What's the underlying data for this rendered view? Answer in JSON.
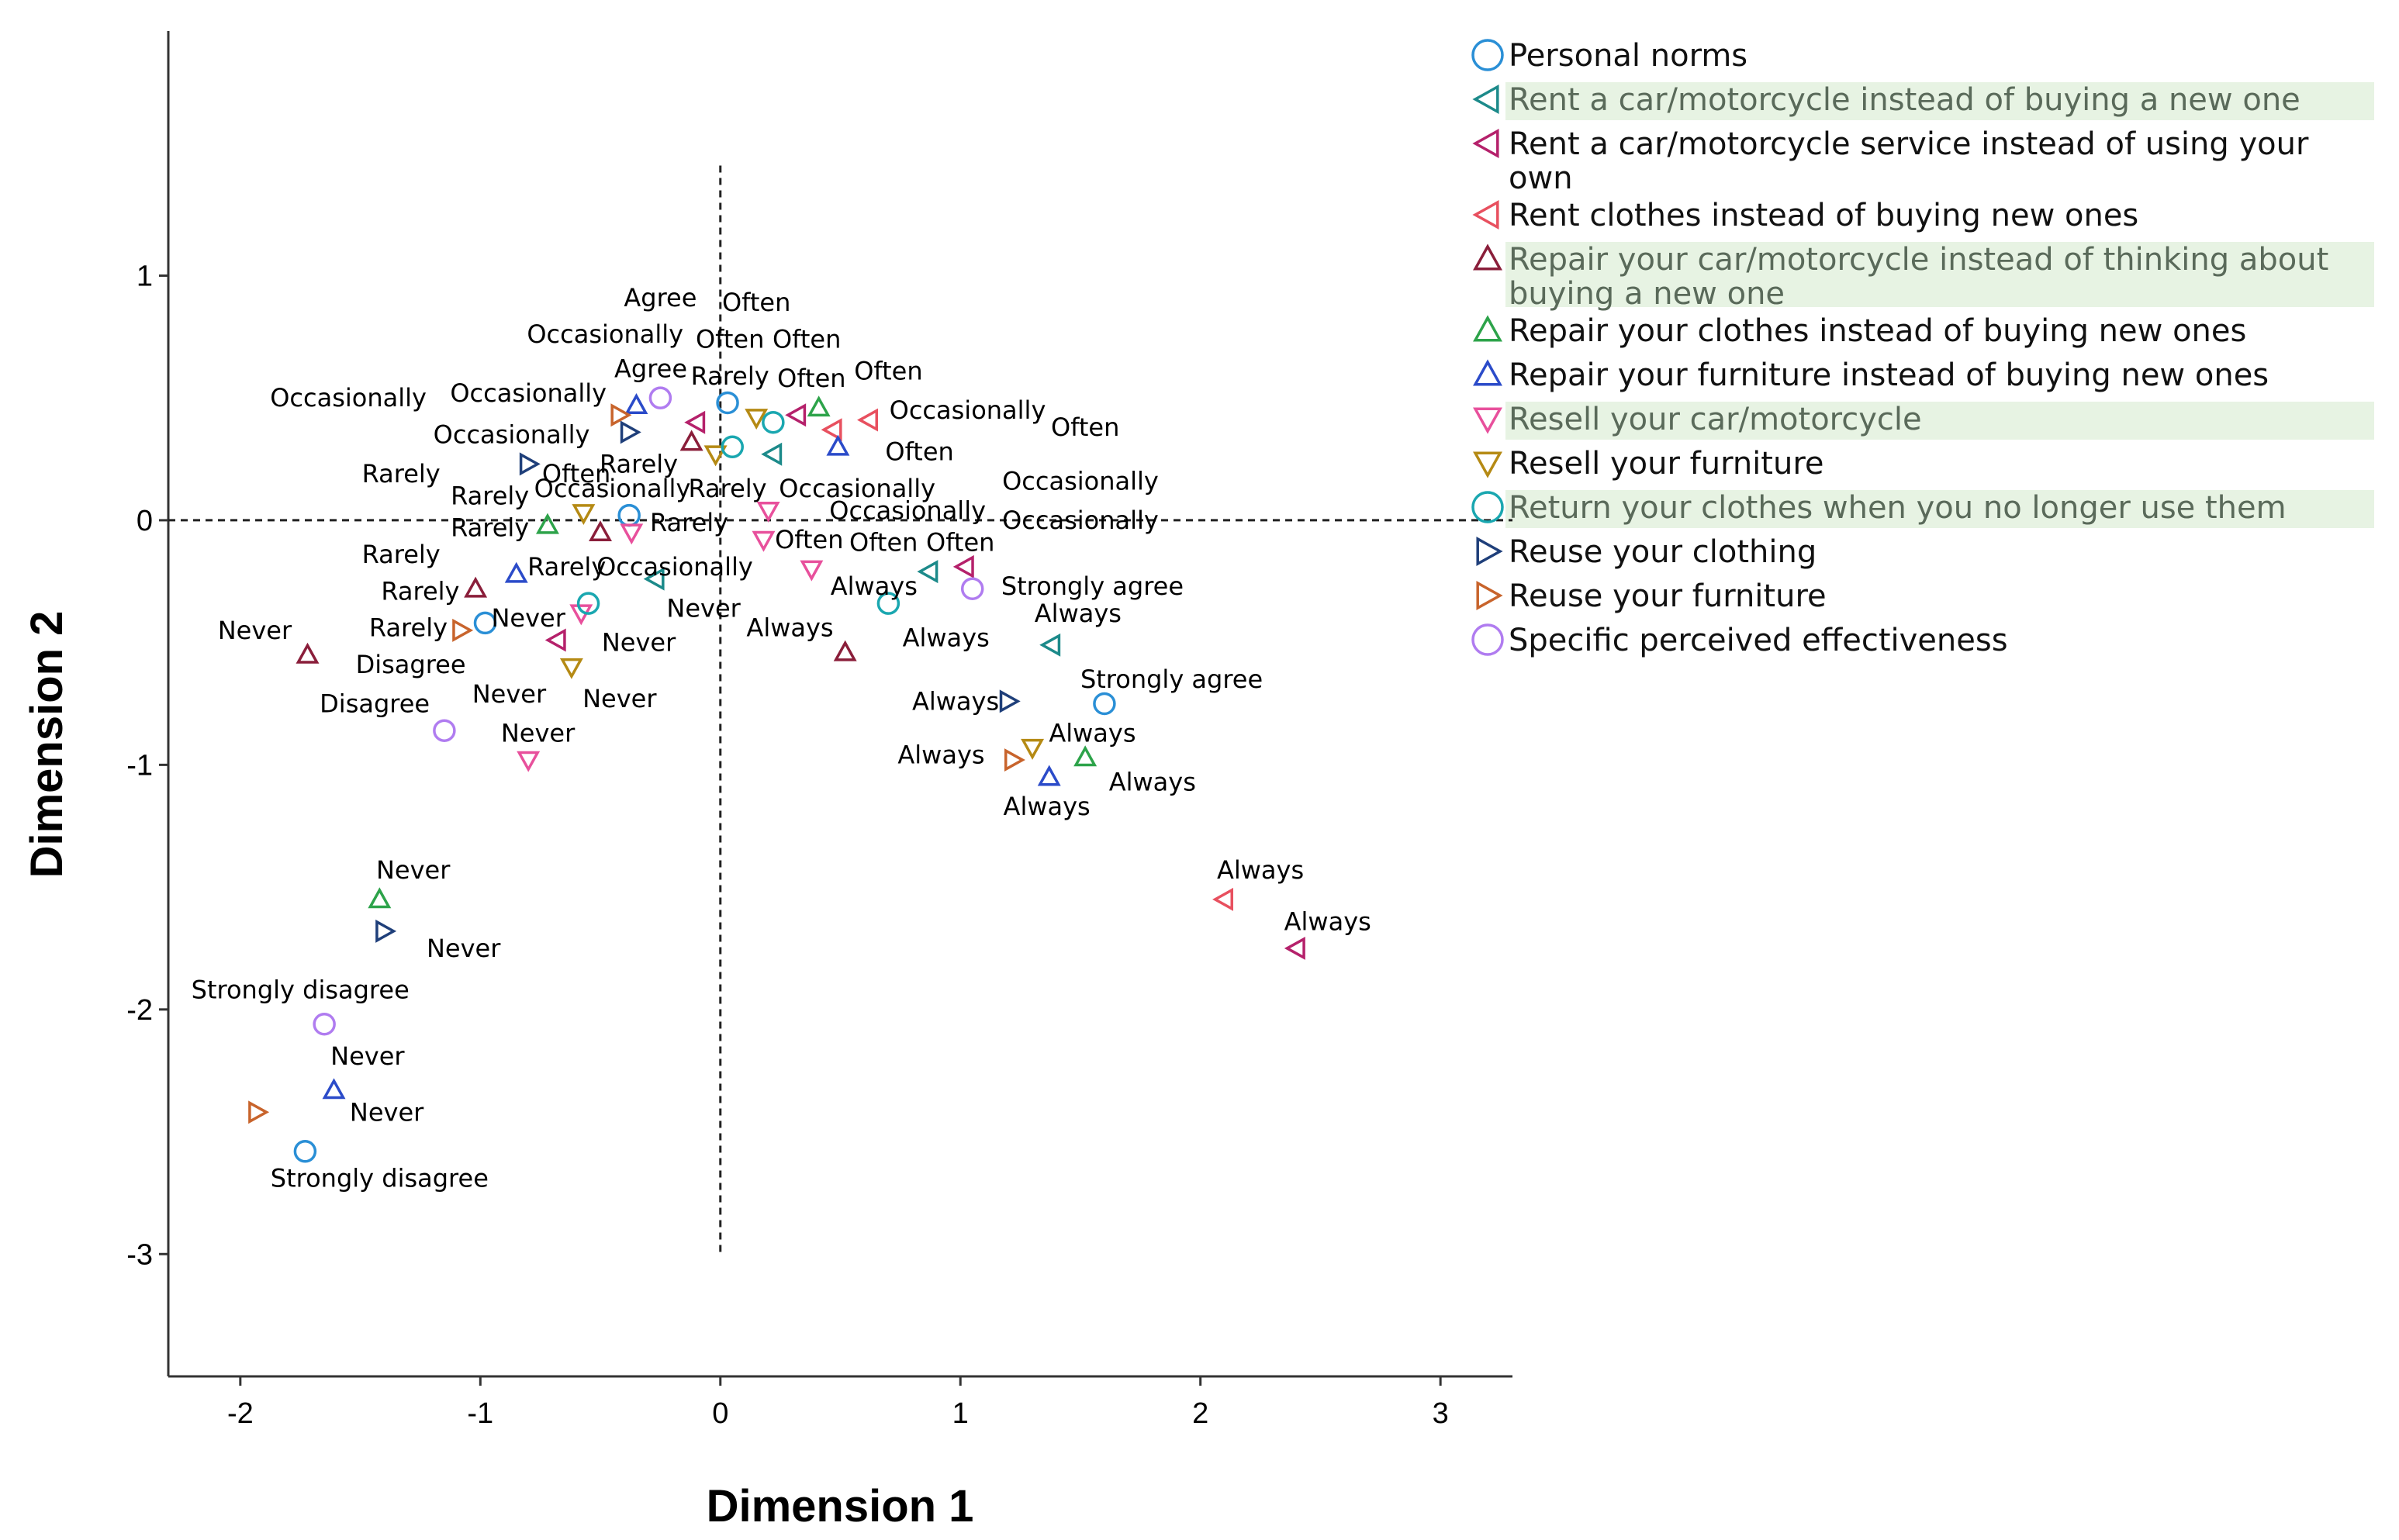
{
  "chart_data": {
    "type": "scatter",
    "title": "",
    "xlabel": "Dimension 1",
    "ylabel": "Dimension 2",
    "xlim": [
      -2.3,
      3.3
    ],
    "ylim": [
      -3.5,
      2.0
    ],
    "xticks": [
      -2,
      -1,
      0,
      1,
      2,
      3
    ],
    "yticks": [
      -3,
      -2,
      -1,
      0,
      1
    ],
    "grid": false,
    "reference_lines": {
      "x": 0,
      "y": 0,
      "style": "dashed"
    },
    "legend_position": "right",
    "series": [
      {
        "name": "Personal norms",
        "marker": "circle",
        "color": "#2a8fd6",
        "legend_highlight": false,
        "points": [
          {
            "x": 0.03,
            "y": 0.48,
            "label": "Agree"
          },
          {
            "x": -0.38,
            "y": 0.02,
            "label": "Occasionally"
          },
          {
            "x": 1.6,
            "y": -0.75,
            "label": "Strongly agree"
          },
          {
            "x": -0.98,
            "y": -0.42,
            "label": "Disagree"
          },
          {
            "x": -1.73,
            "y": -2.58,
            "label": "Strongly disagree"
          }
        ]
      },
      {
        "name": "Rent a car/motorcycle instead of buying a new one",
        "marker": "triangle-left",
        "color": "#1c8a8a",
        "legend_highlight": true,
        "points": [
          {
            "x": 0.22,
            "y": 0.27,
            "label": "Often"
          },
          {
            "x": -0.27,
            "y": -0.24,
            "label": "Rarely"
          },
          {
            "x": 0.87,
            "y": -0.21,
            "label": "Always"
          },
          {
            "x": 1.38,
            "y": -0.51,
            "label": "Always"
          }
        ]
      },
      {
        "name": "Rent a car/motorcycle service instead of using your own",
        "marker": "triangle-left",
        "color": "#b5216b",
        "legend_highlight": false,
        "points": [
          {
            "x": -0.1,
            "y": 0.4,
            "label": "Rarely"
          },
          {
            "x": 0.32,
            "y": 0.43,
            "label": "Often"
          },
          {
            "x": 1.02,
            "y": -0.19,
            "label": "Occasionally"
          },
          {
            "x": -0.68,
            "y": -0.49,
            "label": "Never"
          },
          {
            "x": 2.4,
            "y": -1.75,
            "label": "Always"
          }
        ]
      },
      {
        "name": "Rent clothes instead of buying new ones",
        "marker": "triangle-left",
        "color": "#e8505f",
        "legend_highlight": false,
        "points": [
          {
            "x": 0.47,
            "y": 0.37,
            "label": "Often"
          },
          {
            "x": 0.62,
            "y": 0.41,
            "label": "Occasionally"
          },
          {
            "x": 2.1,
            "y": -1.55,
            "label": "Always"
          }
        ]
      },
      {
        "name": "Repair your car/motorcycle instead of thinking about buying a new one",
        "marker": "triangle-up",
        "color": "#8a1e3a",
        "legend_highlight": true,
        "points": [
          {
            "x": -0.12,
            "y": 0.32,
            "label": "Occasionally"
          },
          {
            "x": -0.5,
            "y": -0.05,
            "label": "Occasionally"
          },
          {
            "x": -1.02,
            "y": -0.28,
            "label": "Rarely"
          },
          {
            "x": -1.72,
            "y": -0.55,
            "label": "Never"
          },
          {
            "x": 0.52,
            "y": -0.54,
            "label": "Always"
          }
        ]
      },
      {
        "name": "Repair your clothes instead of buying new ones",
        "marker": "triangle-up",
        "color": "#2da34a",
        "legend_highlight": false,
        "points": [
          {
            "x": 0.41,
            "y": 0.46,
            "label": "Often"
          },
          {
            "x": -0.72,
            "y": -0.02,
            "label": "Rarely"
          },
          {
            "x": 1.52,
            "y": -0.97,
            "label": "Always"
          },
          {
            "x": -1.42,
            "y": -1.55,
            "label": "Never"
          }
        ]
      },
      {
        "name": "Repair your furniture instead of buying new ones",
        "marker": "triangle-up",
        "color": "#2b4bc9",
        "legend_highlight": false,
        "points": [
          {
            "x": -0.35,
            "y": 0.47,
            "label": "Agree"
          },
          {
            "x": 0.49,
            "y": 0.3,
            "label": "Often"
          },
          {
            "x": -0.85,
            "y": -0.22,
            "label": "Rarely"
          },
          {
            "x": 1.37,
            "y": -1.05,
            "label": "Always"
          },
          {
            "x": -1.61,
            "y": -2.33,
            "label": "Never"
          }
        ]
      },
      {
        "name": "Resell your car/motorcycle",
        "marker": "triangle-down",
        "color": "#e8509c",
        "legend_highlight": true,
        "points": [
          {
            "x": 0.2,
            "y": 0.04,
            "label": "Occasionally"
          },
          {
            "x": 0.18,
            "y": -0.08,
            "label": "Often"
          },
          {
            "x": 0.38,
            "y": -0.2,
            "label": "Always"
          },
          {
            "x": -0.37,
            "y": -0.05,
            "label": "Rarely"
          },
          {
            "x": -0.58,
            "y": -0.38,
            "label": "Never"
          },
          {
            "x": -0.8,
            "y": -0.98,
            "label": "Never"
          }
        ]
      },
      {
        "name": "Resell your furniture",
        "marker": "triangle-down",
        "color": "#b58a14",
        "legend_highlight": false,
        "points": [
          {
            "x": 0.15,
            "y": 0.42,
            "label": "Often"
          },
          {
            "x": -0.02,
            "y": 0.27,
            "label": "Rarely"
          },
          {
            "x": -0.57,
            "y": 0.03,
            "label": "Occasionally"
          },
          {
            "x": -0.62,
            "y": -0.6,
            "label": "Never"
          },
          {
            "x": 1.3,
            "y": -0.93,
            "label": "Always"
          }
        ]
      },
      {
        "name": "Return your clothes when you no longer use them",
        "marker": "circle",
        "color": "#1aa7b0",
        "legend_highlight": true,
        "points": [
          {
            "x": 0.05,
            "y": 0.3,
            "label": "Rarely"
          },
          {
            "x": 0.22,
            "y": 0.4,
            "label": "Often"
          },
          {
            "x": 0.7,
            "y": -0.34,
            "label": "Always"
          },
          {
            "x": -0.55,
            "y": -0.34,
            "label": "Never"
          }
        ]
      },
      {
        "name": "Reuse your clothing",
        "marker": "triangle-right",
        "color": "#1f3f7a",
        "legend_highlight": false,
        "points": [
          {
            "x": -0.8,
            "y": 0.23,
            "label": "Often"
          },
          {
            "x": -0.38,
            "y": 0.36,
            "label": "Occasionally"
          },
          {
            "x": 1.2,
            "y": -0.74,
            "label": "Always"
          },
          {
            "x": -1.4,
            "y": -1.68,
            "label": "Never"
          }
        ]
      },
      {
        "name": "Reuse your furniture",
        "marker": "triangle-right",
        "color": "#c8642c",
        "legend_highlight": false,
        "points": [
          {
            "x": -0.42,
            "y": 0.43,
            "label": "Occasionally"
          },
          {
            "x": -1.08,
            "y": -0.45,
            "label": "Rarely"
          },
          {
            "x": 1.22,
            "y": -0.98,
            "label": "Always"
          },
          {
            "x": -1.93,
            "y": -2.42,
            "label": "Never"
          }
        ]
      },
      {
        "name": "Specific perceived effectiveness",
        "marker": "circle",
        "color": "#b07cf0",
        "legend_highlight": false,
        "points": [
          {
            "x": -0.25,
            "y": 0.5,
            "label": "Agree"
          },
          {
            "x": 1.05,
            "y": -0.28,
            "label": "Strongly agree"
          },
          {
            "x": -1.15,
            "y": -0.86,
            "label": "Disagree"
          },
          {
            "x": -1.65,
            "y": -2.06,
            "label": "Strongly disagree"
          }
        ]
      }
    ],
    "point_labels": [
      {
        "text": "Agree",
        "x": -0.25,
        "y": 0.91
      },
      {
        "text": "Often",
        "x": 0.15,
        "y": 0.89
      },
      {
        "text": "Occasionally",
        "x": -0.48,
        "y": 0.76
      },
      {
        "text": "Often",
        "x": 0.04,
        "y": 0.74
      },
      {
        "text": "Often",
        "x": 0.36,
        "y": 0.74
      },
      {
        "text": "Agree",
        "x": -0.29,
        "y": 0.62
      },
      {
        "text": "Rarely",
        "x": 0.04,
        "y": 0.59
      },
      {
        "text": "Often",
        "x": 0.38,
        "y": 0.58
      },
      {
        "text": "Often",
        "x": 0.7,
        "y": 0.61
      },
      {
        "text": "Occasionally",
        "x": -1.55,
        "y": 0.5
      },
      {
        "text": "Occasionally",
        "x": -0.8,
        "y": 0.52
      },
      {
        "text": "Occasionally",
        "x": 1.03,
        "y": 0.45
      },
      {
        "text": "Often",
        "x": 1.52,
        "y": 0.38
      },
      {
        "text": "Occasionally",
        "x": -0.87,
        "y": 0.35
      },
      {
        "text": "Often",
        "x": 0.83,
        "y": 0.28
      },
      {
        "text": "Rarely",
        "x": -1.33,
        "y": 0.19
      },
      {
        "text": "Often",
        "x": -0.6,
        "y": 0.19
      },
      {
        "text": "Rarely",
        "x": -0.34,
        "y": 0.23
      },
      {
        "text": "Rarely",
        "x": -0.96,
        "y": 0.1
      },
      {
        "text": "Occasionally",
        "x": -0.45,
        "y": 0.13
      },
      {
        "text": "Rarely",
        "x": 0.03,
        "y": 0.13
      },
      {
        "text": "Occasionally",
        "x": 0.57,
        "y": 0.13
      },
      {
        "text": "Occasionally",
        "x": 1.5,
        "y": 0.16
      },
      {
        "text": "Occasionally",
        "x": 0.78,
        "y": 0.04
      },
      {
        "text": "Occasionally",
        "x": 1.5,
        "y": 0.0
      },
      {
        "text": "Rarely",
        "x": -0.96,
        "y": -0.03
      },
      {
        "text": "Rarely",
        "x": -0.13,
        "y": -0.01
      },
      {
        "text": "Often",
        "x": 0.37,
        "y": -0.08
      },
      {
        "text": "Often",
        "x": 0.68,
        "y": -0.09
      },
      {
        "text": "Often",
        "x": 1.0,
        "y": -0.09
      },
      {
        "text": "Rarely",
        "x": -1.33,
        "y": -0.14
      },
      {
        "text": "Rarely",
        "x": -0.64,
        "y": -0.19
      },
      {
        "text": "Occasionally",
        "x": -0.19,
        "y": -0.19
      },
      {
        "text": "Always",
        "x": 0.64,
        "y": -0.27
      },
      {
        "text": "Strongly agree",
        "x": 1.55,
        "y": -0.27
      },
      {
        "text": "Rarely",
        "x": -1.25,
        "y": -0.29
      },
      {
        "text": "Never",
        "x": -0.07,
        "y": -0.36
      },
      {
        "text": "Never",
        "x": -0.8,
        "y": -0.4
      },
      {
        "text": "Always",
        "x": 1.49,
        "y": -0.38
      },
      {
        "text": "Never",
        "x": -1.94,
        "y": -0.45
      },
      {
        "text": "Rarely",
        "x": -1.3,
        "y": -0.44
      },
      {
        "text": "Always",
        "x": 0.29,
        "y": -0.44
      },
      {
        "text": "Always",
        "x": 0.94,
        "y": -0.48
      },
      {
        "text": "Never",
        "x": -0.34,
        "y": -0.5
      },
      {
        "text": "Disagree",
        "x": -1.29,
        "y": -0.59
      },
      {
        "text": "Strongly agree",
        "x": 1.88,
        "y": -0.65
      },
      {
        "text": "Never",
        "x": -0.88,
        "y": -0.71
      },
      {
        "text": "Never",
        "x": -0.42,
        "y": -0.73
      },
      {
        "text": "Disagree",
        "x": -1.44,
        "y": -0.75
      },
      {
        "text": "Always",
        "x": 0.98,
        "y": -0.74
      },
      {
        "text": "Always",
        "x": 1.55,
        "y": -0.87
      },
      {
        "text": "Never",
        "x": -0.76,
        "y": -0.87
      },
      {
        "text": "Always",
        "x": 0.92,
        "y": -0.96
      },
      {
        "text": "Always",
        "x": 1.8,
        "y": -1.07
      },
      {
        "text": "Always",
        "x": 1.36,
        "y": -1.17
      },
      {
        "text": "Never",
        "x": -1.28,
        "y": -1.43
      },
      {
        "text": "Always",
        "x": 2.25,
        "y": -1.43
      },
      {
        "text": "Always",
        "x": 2.53,
        "y": -1.64
      },
      {
        "text": "Never",
        "x": -1.07,
        "y": -1.75
      },
      {
        "text": "Strongly disagree",
        "x": -1.75,
        "y": -1.92
      },
      {
        "text": "Never",
        "x": -1.47,
        "y": -2.19
      },
      {
        "text": "Never",
        "x": -1.39,
        "y": -2.42
      },
      {
        "text": "Strongly disagree",
        "x": -1.42,
        "y": -2.69
      }
    ]
  }
}
